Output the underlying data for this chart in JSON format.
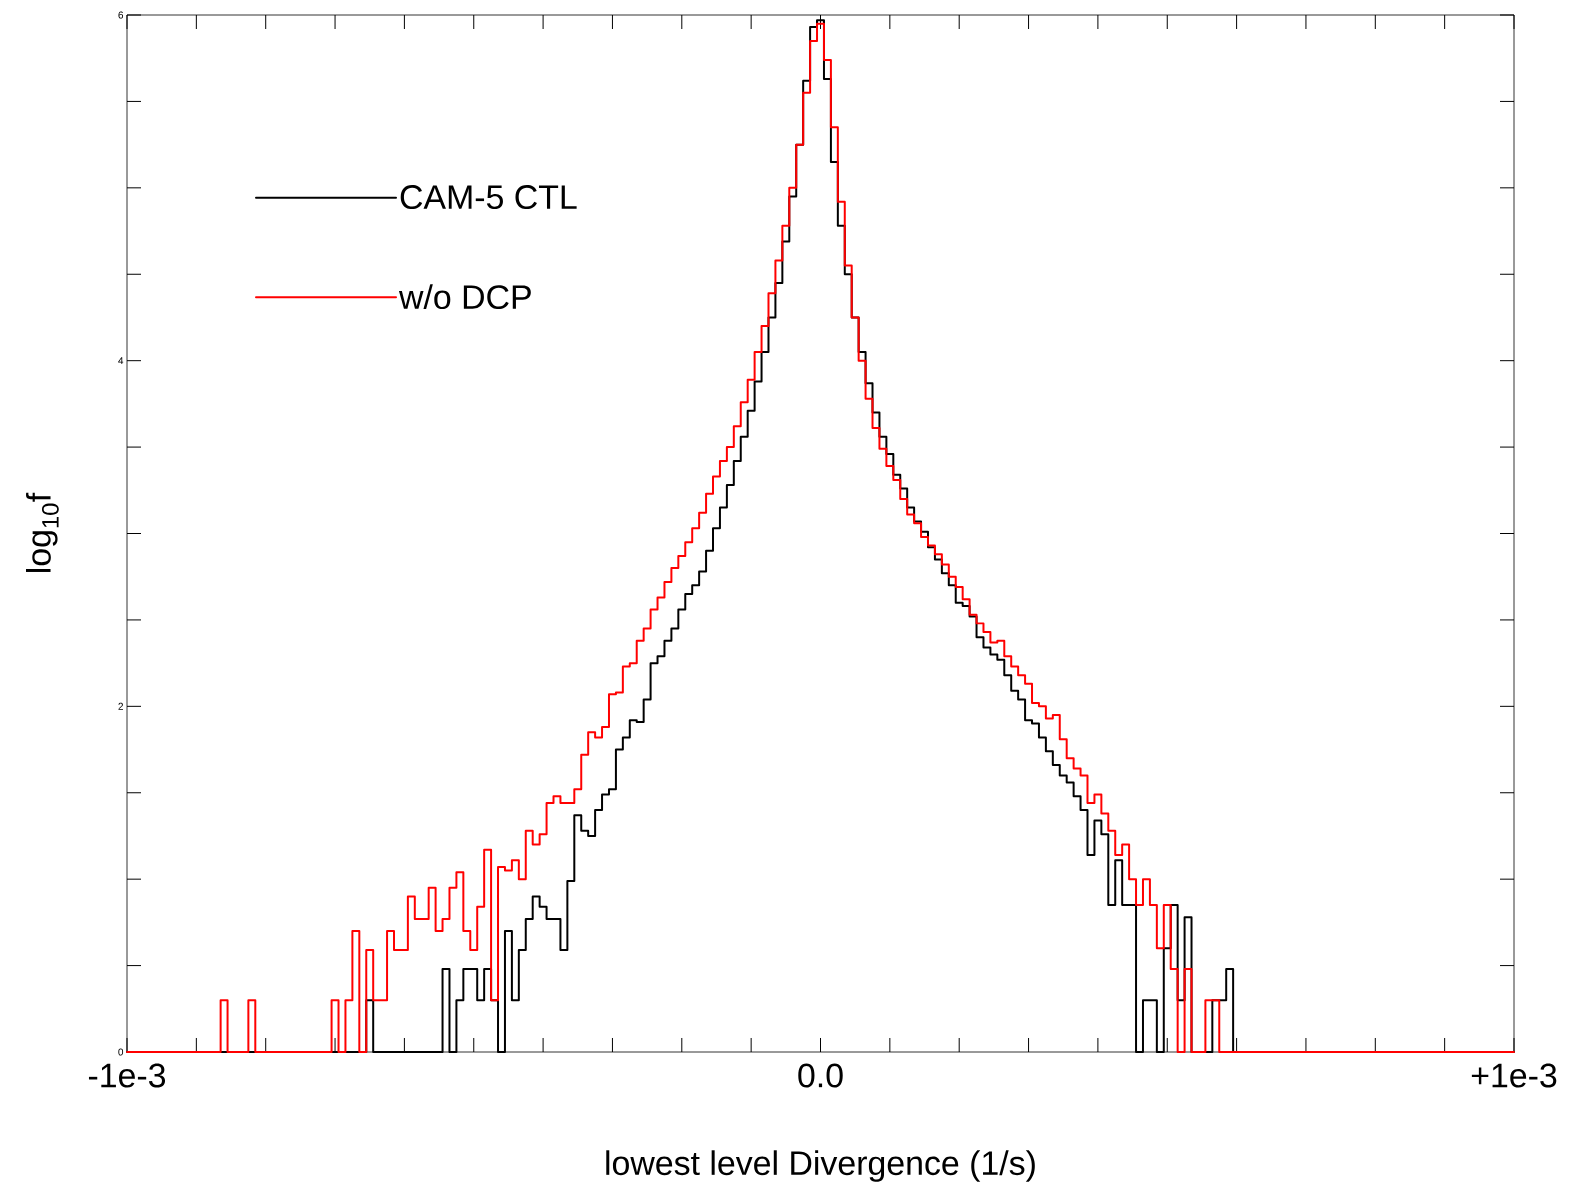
{
  "chart_data": {
    "type": "step",
    "xlabel": "lowest level Divergence (1/s)",
    "ylabel": "log$_{10}$f",
    "xlim": [
      -0.001,
      0.001
    ],
    "ylim": [
      0,
      6
    ],
    "xticks": [
      {
        "value": -0.001,
        "label": "-1e-3"
      },
      {
        "value": -0.0009,
        "label": null
      },
      {
        "value": -0.0008,
        "label": null
      },
      {
        "value": -0.0007,
        "label": null
      },
      {
        "value": -0.0006,
        "label": null
      },
      {
        "value": -0.0005,
        "label": null
      },
      {
        "value": -0.0004,
        "label": null
      },
      {
        "value": -0.0003,
        "label": null
      },
      {
        "value": -0.0002,
        "label": null
      },
      {
        "value": -0.0001,
        "label": null
      },
      {
        "value": 0,
        "label": "0.0"
      },
      {
        "value": 0.0001,
        "label": null
      },
      {
        "value": 0.0002,
        "label": null
      },
      {
        "value": 0.0003,
        "label": null
      },
      {
        "value": 0.0004,
        "label": null
      },
      {
        "value": 0.0005,
        "label": null
      },
      {
        "value": 0.0006,
        "label": null
      },
      {
        "value": 0.0007,
        "label": null
      },
      {
        "value": 0.0008,
        "label": null
      },
      {
        "value": 0.0009,
        "label": null
      },
      {
        "value": 0.001,
        "label": "+1e-3"
      }
    ],
    "yticks": [
      0,
      {
        "value": 0.5,
        "label": null
      },
      {
        "value": 1,
        "label": null
      },
      {
        "value": 1.5,
        "label": null
      },
      2,
      {
        "value": 2.5,
        "label": null
      },
      {
        "value": 3,
        "label": null
      },
      {
        "value": 3.5,
        "label": null
      },
      4,
      {
        "value": 4.5,
        "label": null
      },
      {
        "value": 5,
        "label": null
      },
      {
        "value": 5.5,
        "label": null
      },
      6
    ],
    "legend": "top left",
    "series": [
      {
        "name": "CAM-5 CTL",
        "color": "#000000",
        "x": [
          -0.001,
          -0.000655,
          -0.000645,
          -0.000545,
          -0.000535,
          -0.000525,
          -0.000515,
          -0.000495,
          -0.000485,
          -0.000475,
          -0.000465,
          -0.000455,
          -0.000445,
          -0.000435,
          -0.000425,
          -0.000415,
          -0.000405,
          -0.000395,
          -0.000375,
          -0.000365,
          -0.000355,
          -0.000345,
          -0.000335,
          -0.000325,
          -0.000315,
          -0.000305,
          -0.000295,
          -0.000285,
          -0.000275,
          -0.000265,
          -0.000255,
          -0.000245,
          -0.000235,
          -0.000225,
          -0.000215,
          -0.000205,
          -0.000195,
          -0.000185,
          -0.000175,
          -0.000165,
          -0.000155,
          -0.000145,
          -0.000135,
          -0.000125,
          -0.000115,
          -0.000105,
          -9.5e-05,
          -8.5e-05,
          -7.5e-05,
          -6.5e-05,
          -5.5e-05,
          -4.5e-05,
          -3.5e-05,
          -2.5e-05,
          -1.5e-05,
          -5e-06,
          5e-06,
          1.5e-05,
          2.5e-05,
          3.5e-05,
          4.5e-05,
          5.5e-05,
          6.5e-05,
          7.5e-05,
          8.5e-05,
          9.5e-05,
          0.000105,
          0.000115,
          0.000125,
          0.000135,
          0.000145,
          0.000155,
          0.000165,
          0.000175,
          0.000185,
          0.000195,
          0.000205,
          0.000215,
          0.000225,
          0.000235,
          0.000245,
          0.000255,
          0.000265,
          0.000275,
          0.000285,
          0.000295,
          0.000305,
          0.000315,
          0.000325,
          0.000335,
          0.000345,
          0.000355,
          0.000365,
          0.000375,
          0.000385,
          0.000395,
          0.000405,
          0.000415,
          0.000425,
          0.000435,
          0.000455,
          0.000465,
          0.000485,
          0.000495,
          0.000505,
          0.000515,
          0.000525,
          0.000535,
          0.000565,
          0.000585,
          0.000595,
          0.001
        ],
        "values": [
          0,
          0.3,
          0,
          0.48,
          0,
          0.3,
          0.48,
          0.3,
          0.48,
          0.3,
          0,
          0.7,
          0.3,
          0.59,
          0.77,
          0.9,
          0.84,
          0.77,
          0.59,
          0.99,
          1.37,
          1.28,
          1.25,
          1.4,
          1.49,
          1.52,
          1.75,
          1.82,
          1.92,
          1.91,
          2.04,
          2.25,
          2.29,
          2.38,
          2.45,
          2.56,
          2.65,
          2.7,
          2.78,
          2.9,
          3.03,
          3.15,
          3.28,
          3.42,
          3.56,
          3.71,
          3.88,
          4.05,
          4.25,
          4.45,
          4.69,
          4.95,
          5.25,
          5.62,
          5.93,
          5.97,
          5.63,
          5.15,
          4.78,
          4.5,
          4.25,
          4.05,
          3.87,
          3.7,
          3.56,
          3.46,
          3.34,
          3.26,
          3.15,
          3.07,
          3.01,
          2.92,
          2.85,
          2.77,
          2.7,
          2.6,
          2.58,
          2.52,
          2.4,
          2.34,
          2.3,
          2.27,
          2.18,
          2.09,
          2.04,
          1.92,
          1.9,
          1.82,
          1.74,
          1.66,
          1.6,
          1.56,
          1.48,
          1.4,
          1.14,
          1.34,
          1.26,
          0.85,
          1.11,
          0.85,
          0,
          0.3,
          0,
          0.6,
          0.85,
          0.3,
          0.78,
          0,
          0.3,
          0.48,
          0,
          0
        ]
      },
      {
        "name": "w/o DCP",
        "color": "#ff0000",
        "x": [
          -0.001,
          -0.000865,
          -0.000855,
          -0.000825,
          -0.000815,
          -0.000705,
          -0.000695,
          -0.000685,
          -0.000675,
          -0.000665,
          -0.000655,
          -0.000645,
          -0.000625,
          -0.000615,
          -0.000595,
          -0.000585,
          -0.000565,
          -0.000555,
          -0.000545,
          -0.000535,
          -0.000525,
          -0.000515,
          -0.000505,
          -0.000495,
          -0.000485,
          -0.000475,
          -0.000465,
          -0.000455,
          -0.000445,
          -0.000435,
          -0.000425,
          -0.000415,
          -0.000405,
          -0.000395,
          -0.000385,
          -0.000375,
          -0.000355,
          -0.000345,
          -0.000335,
          -0.000325,
          -0.000315,
          -0.000305,
          -0.000295,
          -0.000285,
          -0.000275,
          -0.000265,
          -0.000255,
          -0.000245,
          -0.000235,
          -0.000225,
          -0.000215,
          -0.000205,
          -0.000195,
          -0.000185,
          -0.000175,
          -0.000165,
          -0.000155,
          -0.000145,
          -0.000135,
          -0.000125,
          -0.000115,
          -0.000105,
          -9.5e-05,
          -8.5e-05,
          -7.5e-05,
          -6.5e-05,
          -5.5e-05,
          -4.5e-05,
          -3.5e-05,
          -2.5e-05,
          -1.5e-05,
          -5e-06,
          5e-06,
          1.5e-05,
          2.5e-05,
          3.5e-05,
          4.5e-05,
          5.5e-05,
          6.5e-05,
          7.5e-05,
          8.5e-05,
          9.5e-05,
          0.000105,
          0.000115,
          0.000125,
          0.000135,
          0.000145,
          0.000155,
          0.000165,
          0.000175,
          0.000185,
          0.000195,
          0.000205,
          0.000215,
          0.000225,
          0.000235,
          0.000245,
          0.000255,
          0.000265,
          0.000275,
          0.000285,
          0.000295,
          0.000305,
          0.000315,
          0.000325,
          0.000335,
          0.000345,
          0.000355,
          0.000365,
          0.000375,
          0.000385,
          0.000395,
          0.000405,
          0.000415,
          0.000425,
          0.000435,
          0.000445,
          0.000455,
          0.000465,
          0.000475,
          0.000485,
          0.000495,
          0.000505,
          0.000515,
          0.000525,
          0.000535,
          0.000555,
          0.000575,
          0.001
        ],
        "values": [
          0,
          0.3,
          0,
          0.3,
          0,
          0.3,
          0,
          0.3,
          0.7,
          0,
          0.59,
          0.3,
          0.7,
          0.59,
          0.9,
          0.77,
          0.95,
          0.7,
          0.77,
          0.95,
          1.04,
          0.7,
          0.59,
          0.84,
          1.17,
          0.3,
          1.07,
          1.05,
          1.11,
          1.0,
          1.28,
          1.2,
          1.26,
          1.44,
          1.48,
          1.44,
          1.52,
          1.72,
          1.85,
          1.82,
          1.88,
          2.07,
          2.08,
          2.23,
          2.25,
          2.38,
          2.45,
          2.56,
          2.63,
          2.72,
          2.8,
          2.87,
          2.95,
          3.03,
          3.12,
          3.23,
          3.33,
          3.42,
          3.5,
          3.62,
          3.76,
          3.89,
          4.05,
          4.2,
          4.39,
          4.58,
          4.78,
          5.0,
          5.25,
          5.55,
          5.85,
          5.95,
          5.74,
          5.35,
          4.92,
          4.55,
          4.25,
          4.0,
          3.78,
          3.61,
          3.49,
          3.39,
          3.31,
          3.2,
          3.11,
          3.06,
          2.98,
          2.93,
          2.88,
          2.82,
          2.75,
          2.69,
          2.62,
          2.53,
          2.48,
          2.43,
          2.37,
          2.38,
          2.29,
          2.23,
          2.18,
          2.13,
          2.02,
          2.0,
          1.93,
          1.95,
          1.81,
          1.7,
          1.64,
          1.6,
          1.44,
          1.49,
          1.38,
          1.28,
          1.14,
          1.2,
          1.0,
          0.85,
          1.0,
          0.85,
          0.6,
          0.85,
          0.48,
          0,
          0.48,
          0,
          0.3,
          0,
          0
        ]
      }
    ]
  }
}
